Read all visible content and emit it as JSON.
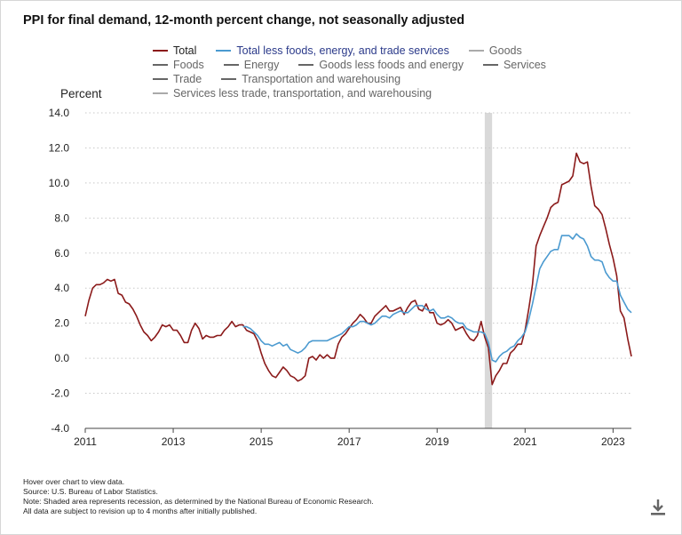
{
  "title": "PPI for final demand, 12-month percent change, not seasonally adjusted",
  "ylabel": "Percent",
  "legend": [
    {
      "label": "Total",
      "color": "#8b1a1a",
      "active": true
    },
    {
      "label": "Total less foods, energy, and trade services",
      "color": "#4b9ad0",
      "active": true
    },
    {
      "label": "Goods",
      "color": "#aaaaaa",
      "active": false
    },
    {
      "label": "Foods",
      "color": "#666666",
      "active": false
    },
    {
      "label": "Energy",
      "color": "#666666",
      "active": false
    },
    {
      "label": "Goods less foods and energy",
      "color": "#666666",
      "active": false
    },
    {
      "label": "Services",
      "color": "#666666",
      "active": false
    },
    {
      "label": "Trade",
      "color": "#666666",
      "active": false
    },
    {
      "label": "Transportation and warehousing",
      "color": "#666666",
      "active": false
    },
    {
      "label": "Services less trade, transportation, and warehousing",
      "color": "#aaaaaa",
      "active": false
    }
  ],
  "notes": [
    "Hover over chart to view data.",
    "Source: U.S. Bureau of Labor Statistics.",
    "Note: Shaded area represents recession, as determined by the National Bureau of Economic Research.",
    "All data are subject to revision up to 4 months after initially published."
  ],
  "download_icon": "download-icon",
  "chart_data": {
    "type": "line",
    "title": "PPI for final demand, 12-month percent change, not seasonally adjusted",
    "ylabel": "Percent",
    "xlabel": "",
    "ylim": [
      -4.0,
      14.0
    ],
    "xlim": [
      "2011-01",
      "2023-06"
    ],
    "y_ticks": [
      "-4.0",
      "-2.0",
      "0.0",
      "2.0",
      "4.0",
      "6.0",
      "8.0",
      "10.0",
      "12.0",
      "14.0"
    ],
    "y_tick_values": [
      -4,
      -2,
      0,
      2,
      4,
      6,
      8,
      10,
      12,
      14
    ],
    "x_ticks": [
      "2011",
      "2013",
      "2015",
      "2017",
      "2019",
      "2021",
      "2023"
    ],
    "x_tick_values": [
      2011,
      2013,
      2015,
      2017,
      2019,
      2021,
      2023
    ],
    "grid": "horizontal dotted",
    "recession": {
      "start": "2020-02",
      "end": "2020-04",
      "color": "#d9d9d9"
    },
    "series": [
      {
        "name": "Total",
        "color": "#8b1a1a",
        "points": [
          [
            "2011-01",
            2.4
          ],
          [
            "2011-02",
            3.3
          ],
          [
            "2011-03",
            4.0
          ],
          [
            "2011-04",
            4.2
          ],
          [
            "2011-05",
            4.2
          ],
          [
            "2011-06",
            4.3
          ],
          [
            "2011-07",
            4.5
          ],
          [
            "2011-08",
            4.4
          ],
          [
            "2011-09",
            4.5
          ],
          [
            "2011-10",
            3.7
          ],
          [
            "2011-11",
            3.6
          ],
          [
            "2011-12",
            3.2
          ],
          [
            "2012-01",
            3.1
          ],
          [
            "2012-02",
            2.8
          ],
          [
            "2012-03",
            2.4
          ],
          [
            "2012-04",
            1.9
          ],
          [
            "2012-05",
            1.5
          ],
          [
            "2012-06",
            1.3
          ],
          [
            "2012-07",
            1.0
          ],
          [
            "2012-08",
            1.2
          ],
          [
            "2012-09",
            1.5
          ],
          [
            "2012-10",
            1.9
          ],
          [
            "2012-11",
            1.8
          ],
          [
            "2012-12",
            1.9
          ],
          [
            "2013-01",
            1.6
          ],
          [
            "2013-02",
            1.6
          ],
          [
            "2013-03",
            1.3
          ],
          [
            "2013-04",
            0.9
          ],
          [
            "2013-05",
            0.9
          ],
          [
            "2013-06",
            1.6
          ],
          [
            "2013-07",
            2.0
          ],
          [
            "2013-08",
            1.7
          ],
          [
            "2013-09",
            1.1
          ],
          [
            "2013-10",
            1.3
          ],
          [
            "2013-11",
            1.2
          ],
          [
            "2013-12",
            1.2
          ],
          [
            "2014-01",
            1.3
          ],
          [
            "2014-02",
            1.3
          ],
          [
            "2014-03",
            1.6
          ],
          [
            "2014-04",
            1.8
          ],
          [
            "2014-05",
            2.1
          ],
          [
            "2014-06",
            1.8
          ],
          [
            "2014-07",
            1.9
          ],
          [
            "2014-08",
            1.9
          ],
          [
            "2014-09",
            1.6
          ],
          [
            "2014-10",
            1.5
          ],
          [
            "2014-11",
            1.4
          ],
          [
            "2014-12",
            1.0
          ],
          [
            "2015-01",
            0.3
          ],
          [
            "2015-02",
            -0.3
          ],
          [
            "2015-03",
            -0.7
          ],
          [
            "2015-04",
            -1.0
          ],
          [
            "2015-05",
            -1.1
          ],
          [
            "2015-06",
            -0.8
          ],
          [
            "2015-07",
            -0.5
          ],
          [
            "2015-08",
            -0.7
          ],
          [
            "2015-09",
            -1.0
          ],
          [
            "2015-10",
            -1.1
          ],
          [
            "2015-11",
            -1.3
          ],
          [
            "2015-12",
            -1.2
          ],
          [
            "2016-01",
            -1.0
          ],
          [
            "2016-02",
            0.0
          ],
          [
            "2016-03",
            0.1
          ],
          [
            "2016-04",
            -0.1
          ],
          [
            "2016-05",
            0.2
          ],
          [
            "2016-06",
            0.0
          ],
          [
            "2016-07",
            0.2
          ],
          [
            "2016-08",
            0.0
          ],
          [
            "2016-09",
            0.0
          ],
          [
            "2016-10",
            0.8
          ],
          [
            "2016-11",
            1.2
          ],
          [
            "2016-12",
            1.4
          ],
          [
            "2017-01",
            1.7
          ],
          [
            "2017-02",
            2.0
          ],
          [
            "2017-03",
            2.2
          ],
          [
            "2017-04",
            2.5
          ],
          [
            "2017-05",
            2.3
          ],
          [
            "2017-06",
            2.0
          ],
          [
            "2017-07",
            2.0
          ],
          [
            "2017-08",
            2.4
          ],
          [
            "2017-09",
            2.6
          ],
          [
            "2017-10",
            2.8
          ],
          [
            "2017-11",
            3.0
          ],
          [
            "2017-12",
            2.7
          ],
          [
            "2018-01",
            2.7
          ],
          [
            "2018-02",
            2.8
          ],
          [
            "2018-03",
            2.9
          ],
          [
            "2018-04",
            2.5
          ],
          [
            "2018-05",
            2.9
          ],
          [
            "2018-06",
            3.2
          ],
          [
            "2018-07",
            3.3
          ],
          [
            "2018-08",
            2.8
          ],
          [
            "2018-09",
            2.7
          ],
          [
            "2018-10",
            3.1
          ],
          [
            "2018-11",
            2.6
          ],
          [
            "2018-12",
            2.6
          ],
          [
            "2019-01",
            2.0
          ],
          [
            "2019-02",
            1.9
          ],
          [
            "2019-03",
            2.0
          ],
          [
            "2019-04",
            2.2
          ],
          [
            "2019-05",
            2.0
          ],
          [
            "2019-06",
            1.6
          ],
          [
            "2019-07",
            1.7
          ],
          [
            "2019-08",
            1.8
          ],
          [
            "2019-09",
            1.4
          ],
          [
            "2019-10",
            1.1
          ],
          [
            "2019-11",
            1.0
          ],
          [
            "2019-12",
            1.3
          ],
          [
            "2020-01",
            2.1
          ],
          [
            "2020-02",
            1.2
          ],
          [
            "2020-03",
            0.6
          ],
          [
            "2020-04",
            -1.5
          ],
          [
            "2020-05",
            -1.0
          ],
          [
            "2020-06",
            -0.7
          ],
          [
            "2020-07",
            -0.3
          ],
          [
            "2020-08",
            -0.3
          ],
          [
            "2020-09",
            0.3
          ],
          [
            "2020-10",
            0.5
          ],
          [
            "2020-11",
            0.8
          ],
          [
            "2020-12",
            0.8
          ],
          [
            "2021-01",
            1.6
          ],
          [
            "2021-02",
            2.8
          ],
          [
            "2021-03",
            4.2
          ],
          [
            "2021-04",
            6.4
          ],
          [
            "2021-05",
            7.0
          ],
          [
            "2021-06",
            7.5
          ],
          [
            "2021-07",
            8.0
          ],
          [
            "2021-08",
            8.6
          ],
          [
            "2021-09",
            8.8
          ],
          [
            "2021-10",
            8.9
          ],
          [
            "2021-11",
            9.9
          ],
          [
            "2021-12",
            10.0
          ],
          [
            "2022-01",
            10.1
          ],
          [
            "2022-02",
            10.4
          ],
          [
            "2022-03",
            11.7
          ],
          [
            "2022-04",
            11.2
          ],
          [
            "2022-05",
            11.1
          ],
          [
            "2022-06",
            11.2
          ],
          [
            "2022-07",
            9.8
          ],
          [
            "2022-08",
            8.7
          ],
          [
            "2022-09",
            8.5
          ],
          [
            "2022-10",
            8.2
          ],
          [
            "2022-11",
            7.4
          ],
          [
            "2022-12",
            6.5
          ],
          [
            "2023-01",
            5.7
          ],
          [
            "2023-02",
            4.7
          ],
          [
            "2023-03",
            2.7
          ],
          [
            "2023-04",
            2.3
          ],
          [
            "2023-05",
            1.1
          ],
          [
            "2023-06",
            0.1
          ]
        ]
      },
      {
        "name": "Total less foods, energy, and trade services",
        "color": "#4b9ad0",
        "points": [
          [
            "2014-08",
            1.8
          ],
          [
            "2014-09",
            1.8
          ],
          [
            "2014-10",
            1.7
          ],
          [
            "2014-11",
            1.5
          ],
          [
            "2014-12",
            1.3
          ],
          [
            "2015-01",
            1.0
          ],
          [
            "2015-02",
            0.8
          ],
          [
            "2015-03",
            0.8
          ],
          [
            "2015-04",
            0.7
          ],
          [
            "2015-05",
            0.8
          ],
          [
            "2015-06",
            0.9
          ],
          [
            "2015-07",
            0.7
          ],
          [
            "2015-08",
            0.8
          ],
          [
            "2015-09",
            0.5
          ],
          [
            "2015-10",
            0.4
          ],
          [
            "2015-11",
            0.3
          ],
          [
            "2015-12",
            0.4
          ],
          [
            "2016-01",
            0.6
          ],
          [
            "2016-02",
            0.9
          ],
          [
            "2016-03",
            1.0
          ],
          [
            "2016-04",
            1.0
          ],
          [
            "2016-05",
            1.0
          ],
          [
            "2016-06",
            1.0
          ],
          [
            "2016-07",
            1.0
          ],
          [
            "2016-08",
            1.1
          ],
          [
            "2016-09",
            1.2
          ],
          [
            "2016-10",
            1.3
          ],
          [
            "2016-11",
            1.4
          ],
          [
            "2016-12",
            1.6
          ],
          [
            "2017-01",
            1.8
          ],
          [
            "2017-02",
            1.8
          ],
          [
            "2017-03",
            1.9
          ],
          [
            "2017-04",
            2.1
          ],
          [
            "2017-05",
            2.1
          ],
          [
            "2017-06",
            2.0
          ],
          [
            "2017-07",
            1.9
          ],
          [
            "2017-08",
            2.0
          ],
          [
            "2017-09",
            2.2
          ],
          [
            "2017-10",
            2.4
          ],
          [
            "2017-11",
            2.4
          ],
          [
            "2017-12",
            2.3
          ],
          [
            "2018-01",
            2.5
          ],
          [
            "2018-02",
            2.6
          ],
          [
            "2018-03",
            2.7
          ],
          [
            "2018-04",
            2.6
          ],
          [
            "2018-05",
            2.6
          ],
          [
            "2018-06",
            2.8
          ],
          [
            "2018-07",
            3.0
          ],
          [
            "2018-08",
            3.0
          ],
          [
            "2018-09",
            3.0
          ],
          [
            "2018-10",
            2.8
          ],
          [
            "2018-11",
            2.7
          ],
          [
            "2018-12",
            2.8
          ],
          [
            "2019-01",
            2.5
          ],
          [
            "2019-02",
            2.3
          ],
          [
            "2019-03",
            2.3
          ],
          [
            "2019-04",
            2.4
          ],
          [
            "2019-05",
            2.3
          ],
          [
            "2019-06",
            2.1
          ],
          [
            "2019-07",
            2.0
          ],
          [
            "2019-08",
            2.0
          ],
          [
            "2019-09",
            1.7
          ],
          [
            "2019-10",
            1.6
          ],
          [
            "2019-11",
            1.5
          ],
          [
            "2019-12",
            1.5
          ],
          [
            "2020-01",
            1.5
          ],
          [
            "2020-02",
            1.4
          ],
          [
            "2020-03",
            0.9
          ],
          [
            "2020-04",
            -0.1
          ],
          [
            "2020-05",
            -0.2
          ],
          [
            "2020-06",
            0.1
          ],
          [
            "2020-07",
            0.3
          ],
          [
            "2020-08",
            0.4
          ],
          [
            "2020-09",
            0.6
          ],
          [
            "2020-10",
            0.7
          ],
          [
            "2020-11",
            1.0
          ],
          [
            "2020-12",
            1.2
          ],
          [
            "2021-01",
            1.5
          ],
          [
            "2021-02",
            2.2
          ],
          [
            "2021-03",
            3.1
          ],
          [
            "2021-04",
            4.1
          ],
          [
            "2021-05",
            5.1
          ],
          [
            "2021-06",
            5.5
          ],
          [
            "2021-07",
            5.8
          ],
          [
            "2021-08",
            6.1
          ],
          [
            "2021-09",
            6.2
          ],
          [
            "2021-10",
            6.2
          ],
          [
            "2021-11",
            7.0
          ],
          [
            "2021-12",
            7.0
          ],
          [
            "2022-01",
            7.0
          ],
          [
            "2022-02",
            6.8
          ],
          [
            "2022-03",
            7.1
          ],
          [
            "2022-04",
            6.9
          ],
          [
            "2022-05",
            6.8
          ],
          [
            "2022-06",
            6.4
          ],
          [
            "2022-07",
            5.8
          ],
          [
            "2022-08",
            5.6
          ],
          [
            "2022-09",
            5.6
          ],
          [
            "2022-10",
            5.5
          ],
          [
            "2022-11",
            4.9
          ],
          [
            "2022-12",
            4.6
          ],
          [
            "2023-01",
            4.4
          ],
          [
            "2023-02",
            4.4
          ],
          [
            "2023-03",
            3.6
          ],
          [
            "2023-04",
            3.2
          ],
          [
            "2023-05",
            2.8
          ],
          [
            "2023-06",
            2.6
          ]
        ]
      }
    ]
  }
}
